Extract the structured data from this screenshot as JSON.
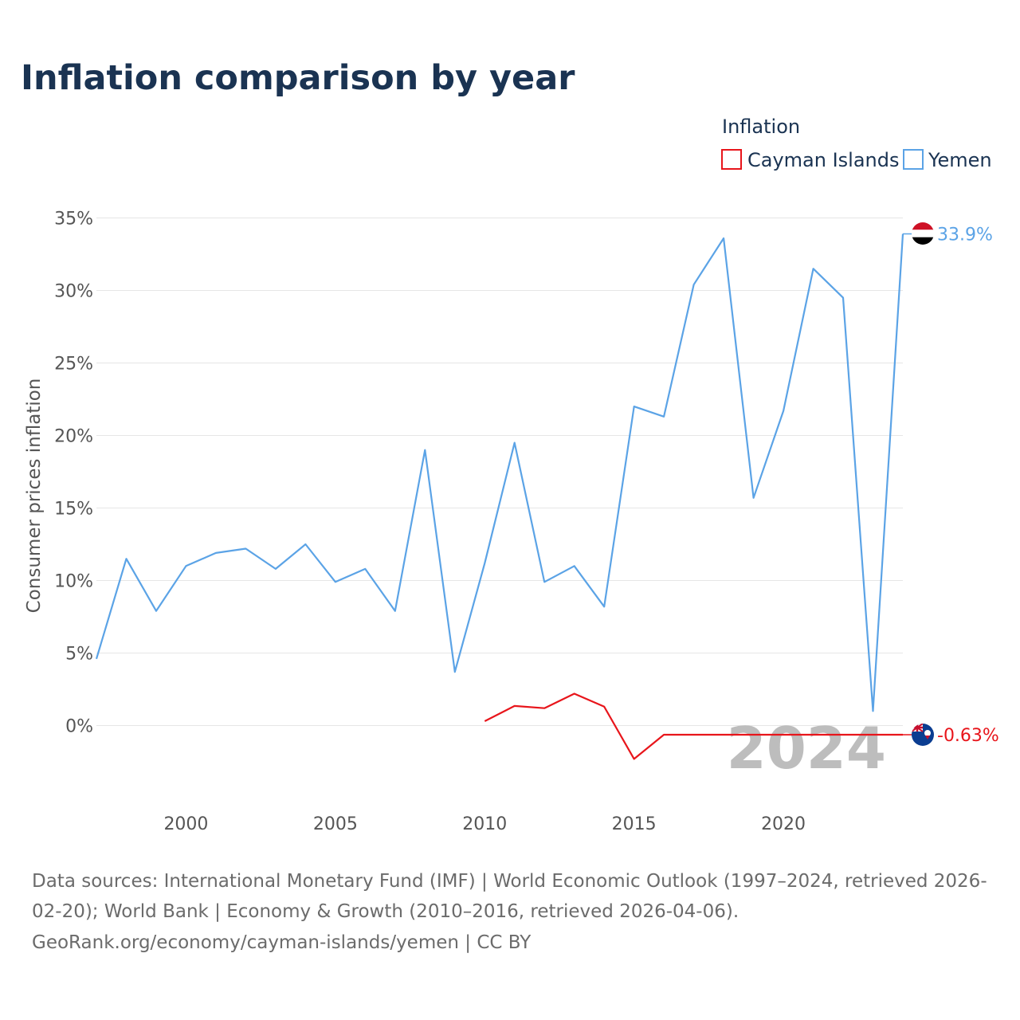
{
  "chart_data": {
    "type": "line",
    "title": "Inflation comparison by year",
    "ylabel": "Consumer prices inflation",
    "xlabel": "",
    "xlim": [
      1997,
      2024
    ],
    "ylim": [
      -5,
      35
    ],
    "y_ticks": [
      0,
      5,
      10,
      15,
      20,
      25,
      30,
      35
    ],
    "y_tick_labels": [
      "0%",
      "5%",
      "10%",
      "15%",
      "20%",
      "25%",
      "30%",
      "35%"
    ],
    "x_ticks": [
      2000,
      2005,
      2010,
      2015,
      2020
    ],
    "x_tick_labels": [
      "2000",
      "2005",
      "2010",
      "2015",
      "2020"
    ],
    "legend": {
      "title": "Inflation",
      "position": "top-right"
    },
    "current_year": "2024",
    "series": [
      {
        "name": "Cayman Islands",
        "color": "#e8151b",
        "end_label": "-0.63%",
        "flag_icon": "cayman-islands-flag-icon",
        "x": [
          2010,
          2011,
          2012,
          2013,
          2014,
          2015,
          2016,
          2024
        ],
        "values": [
          0.3,
          1.35,
          1.2,
          2.2,
          1.3,
          -2.3,
          -0.63,
          -0.63
        ]
      },
      {
        "name": "Yemen",
        "color": "#5ba3e6",
        "end_label": "33.9%",
        "flag_icon": "yemen-flag-icon",
        "x": [
          1997,
          1998,
          1999,
          2000,
          2001,
          2002,
          2003,
          2004,
          2005,
          2006,
          2007,
          2008,
          2009,
          2010,
          2011,
          2012,
          2013,
          2014,
          2015,
          2016,
          2017,
          2018,
          2019,
          2020,
          2021,
          2022,
          2023,
          2024
        ],
        "values": [
          4.6,
          11.5,
          7.9,
          11.0,
          11.9,
          12.2,
          10.8,
          12.5,
          9.9,
          10.8,
          7.9,
          19.0,
          3.7,
          11.2,
          19.5,
          9.9,
          11.0,
          8.2,
          22.0,
          21.3,
          30.4,
          33.6,
          15.7,
          21.7,
          31.5,
          29.5,
          1.0,
          33.9
        ]
      }
    ]
  },
  "footer": {
    "source_line_1": "Data sources: International Monetary Fund (IMF) | World Economic Outlook (1997–2024, retrieved 2026-",
    "source_line_2": "02-20); World Bank | Economy & Growth (2010–2016, retrieved 2026-04-06).",
    "source_line_3": "GeoRank.org/economy/cayman-islands/yemen | CC BY"
  }
}
